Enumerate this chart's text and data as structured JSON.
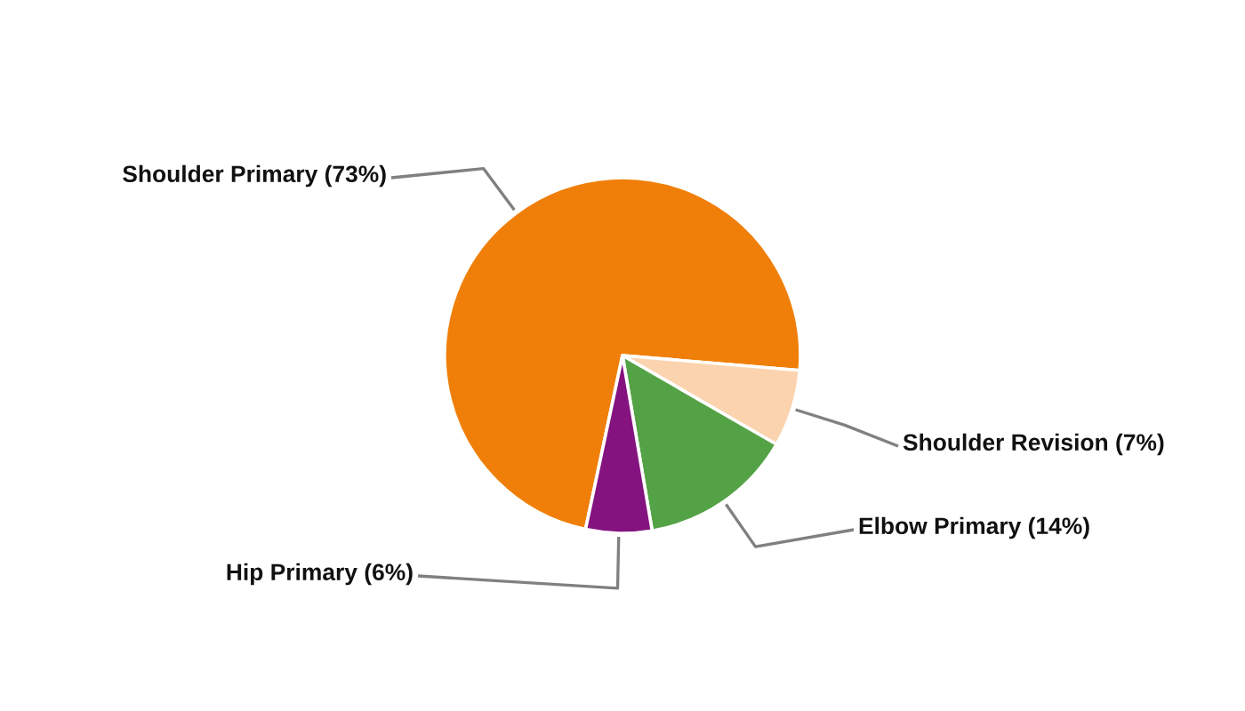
{
  "chart_data": {
    "type": "pie",
    "categories": [
      "Shoulder Primary (73%)",
      "Shoulder Revision (7%)",
      "Elbow Primary (14%)",
      "Hip Primary (6%)"
    ],
    "values": [
      73,
      7,
      14,
      6
    ],
    "colors": [
      "#f07f09",
      "#fbd3ae",
      "#54a246",
      "#84137f"
    ]
  }
}
